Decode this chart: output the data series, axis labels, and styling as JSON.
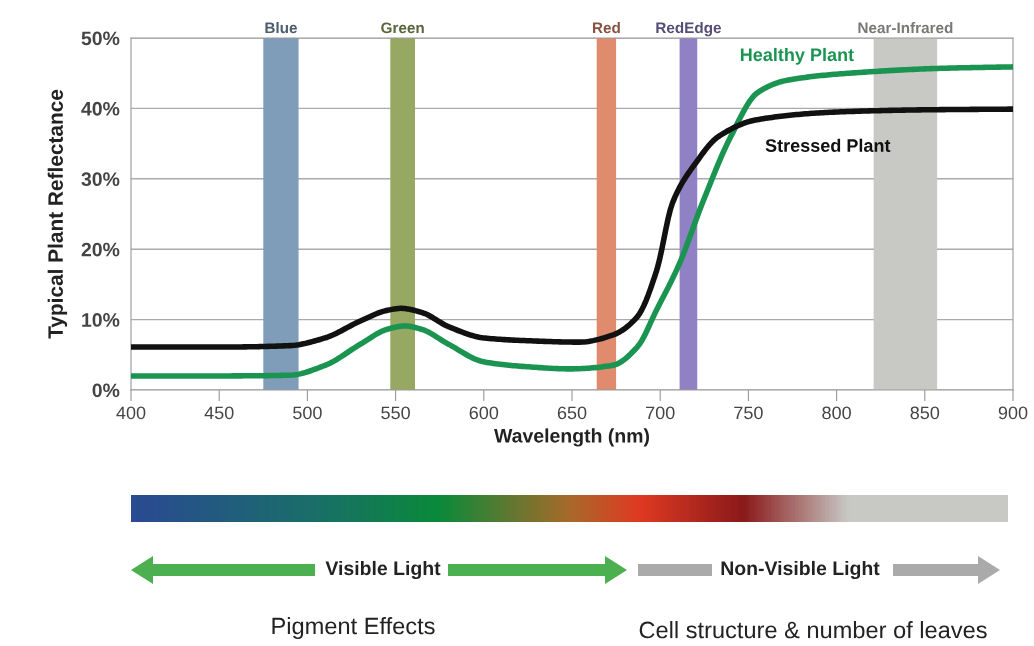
{
  "chart_data": {
    "type": "line",
    "xlabel": "Wavelength (nm)",
    "ylabel": "Typical Plant Reflectance",
    "xlim": [
      400,
      900
    ],
    "xticks": [
      400,
      450,
      500,
      550,
      600,
      650,
      700,
      750,
      800,
      850,
      900
    ],
    "ylim": [
      0,
      50
    ],
    "yticks": [
      {
        "value": 0,
        "label": "0%"
      },
      {
        "value": 10,
        "label": "10%"
      },
      {
        "value": 20,
        "label": "20%"
      },
      {
        "value": 30,
        "label": "30%"
      },
      {
        "value": 40,
        "label": "40%"
      },
      {
        "value": 50,
        "label": "50%"
      }
    ],
    "grid": "y",
    "legend": false,
    "marker": "none",
    "line_style": "solid",
    "series": [
      {
        "name": "Healthy Plant",
        "color": "#1a9450",
        "x": [
          400,
          450,
          490,
          510,
          530,
          545,
          555,
          565,
          580,
          600,
          625,
          649,
          673,
          687,
          698,
          711,
          724,
          740,
          755,
          772,
          819,
          860,
          900
        ],
        "values": [
          2.0,
          2.0,
          2.1,
          3.5,
          6.5,
          8.6,
          9.1,
          8.6,
          6.5,
          4.0,
          3.3,
          3.0,
          3.5,
          6.1,
          11.4,
          18.0,
          26.6,
          36.0,
          42.2,
          44.0,
          45.2,
          45.7,
          45.9
        ]
      },
      {
        "name": "Stressed Plant",
        "color": "#111111",
        "x": [
          400,
          450,
          490,
          510,
          530,
          545,
          553,
          565,
          580,
          600,
          625,
          654,
          673,
          687,
          698,
          707,
          720,
          733,
          755,
          801,
          850,
          900
        ],
        "values": [
          6.1,
          6.1,
          6.3,
          7.4,
          9.8,
          11.3,
          11.6,
          11.0,
          9.0,
          7.4,
          7.0,
          6.8,
          7.8,
          10.4,
          17.0,
          26.6,
          32.2,
          36.0,
          38.4,
          39.5,
          39.8,
          39.9
        ]
      }
    ],
    "bands": [
      {
        "axis": "x",
        "from": 475,
        "to": 495,
        "label": "Blue",
        "color": "#7f9db8"
      },
      {
        "axis": "x",
        "from": 547,
        "to": 561,
        "label": "Green",
        "color": "#97a862"
      },
      {
        "axis": "x",
        "from": 664,
        "to": 675,
        "label": "Red",
        "color": "#e08b6e"
      },
      {
        "axis": "x",
        "from": 711,
        "to": 721,
        "label": "RedEdge",
        "color": "#9080c4"
      },
      {
        "axis": "x",
        "from": 821,
        "to": 857,
        "label": "Near-Infrared",
        "color": "#c8c8c4"
      }
    ],
    "annotations": [
      "Visible Light",
      "Non-Visible Light",
      "Pigment Effects",
      "Cell structure & number of leaves"
    ]
  }
}
